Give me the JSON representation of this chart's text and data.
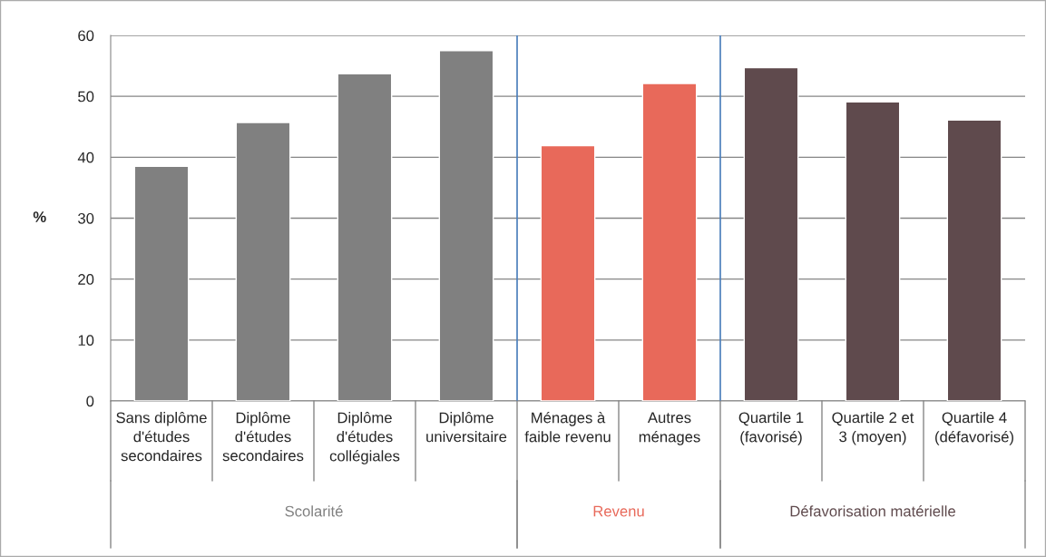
{
  "chart_data": {
    "type": "bar",
    "ylabel": "%",
    "categories": [
      "Sans diplôme d'études secondaires",
      "Diplôme d'études secondaires",
      "Diplôme d'études collégiales",
      "Diplôme universitaire",
      "Ménages à faible revenu",
      "Autres ménages",
      "Quartile 1 (favorisé)",
      "Quartile 2 et 3 (moyen)",
      "Quartile 4 (défavorisé)"
    ],
    "series": [
      {
        "name": "Scolarité",
        "color": "#808080",
        "values": [
          38.5,
          45.7,
          53.7,
          57.5,
          null,
          null,
          null,
          null,
          null
        ]
      },
      {
        "name": "Revenu",
        "color": "#e8695a",
        "values": [
          null,
          null,
          null,
          null,
          41.9,
          52.1,
          null,
          null,
          null
        ]
      },
      {
        "name": "Défavorisation matérielle",
        "color": "#5f4a4d",
        "values": [
          null,
          null,
          null,
          null,
          null,
          null,
          54.7,
          49.1,
          46.1
        ]
      }
    ],
    "ylim": [
      0,
      60
    ],
    "yticks": [
      0,
      10,
      20,
      30,
      40,
      50,
      60
    ],
    "grid": "y",
    "legend": false
  }
}
